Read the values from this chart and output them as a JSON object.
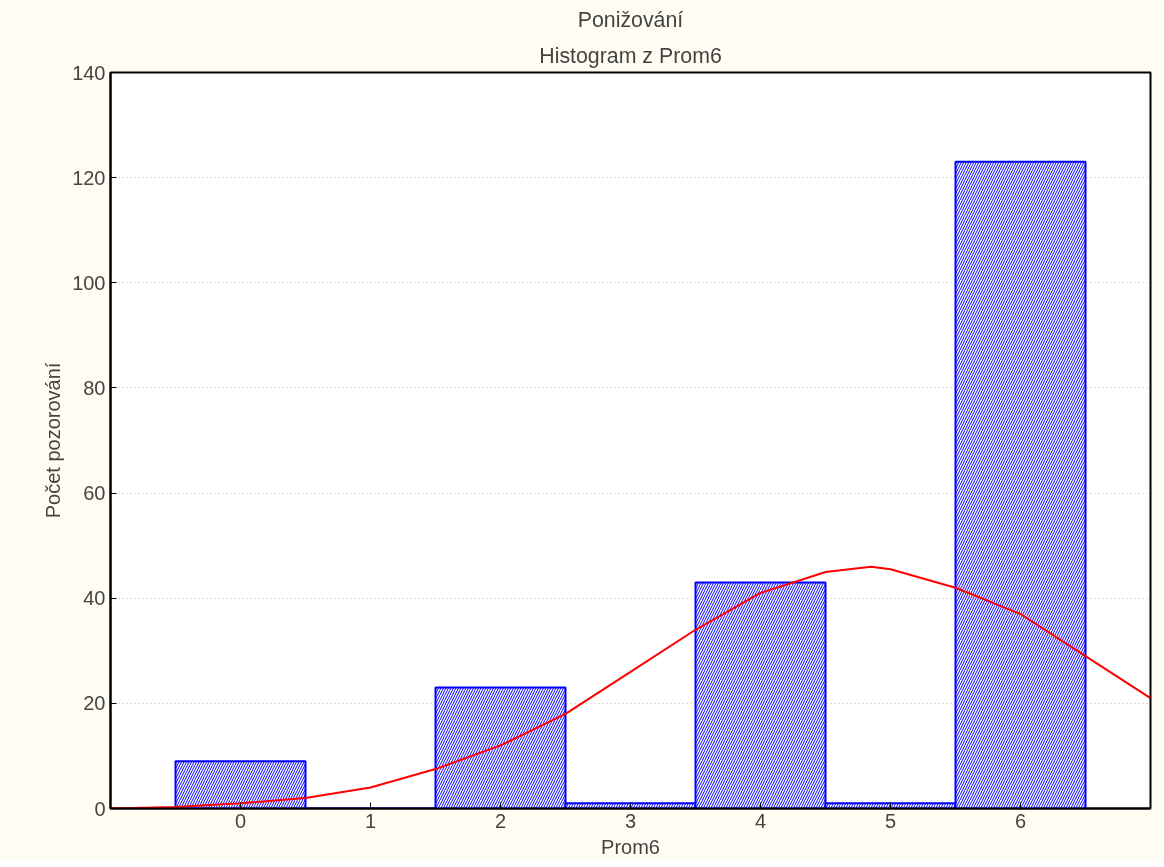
{
  "chart_data": {
    "type": "histogram",
    "title": "Ponižování",
    "subtitle": "Histogram z Prom6",
    "xlabel": "Prom6",
    "ylabel": "Počet pozorování",
    "bins": [
      -0.5,
      0.5,
      1.5,
      2.5,
      3.5,
      4.5,
      5.5,
      6.5
    ],
    "series": [
      {
        "color": "#0000ff",
        "values": [
          9,
          0,
          23,
          1,
          43,
          1,
          123
        ]
      },
      {
        "type": "line",
        "color": "#ff0000",
        "x": [
          -1,
          -0.5,
          0,
          0.5,
          1,
          1.5,
          2,
          2.5,
          3,
          3.5,
          4,
          4.5,
          4.85,
          5,
          5.5,
          6,
          6.5,
          7
        ],
        "values": [
          0,
          0.3,
          1,
          2,
          4,
          7.5,
          12,
          18,
          26,
          34,
          41,
          45,
          46,
          45.5,
          42,
          37,
          29,
          21
        ]
      }
    ],
    "xlim": [
      -1,
      7
    ],
    "xticks": [
      0,
      1,
      2,
      3,
      4,
      5,
      6
    ],
    "ylim": [
      0,
      140
    ],
    "yticks": [
      0,
      20,
      40,
      60,
      80,
      100,
      120,
      140
    ],
    "grid": "y",
    "marker": "none",
    "line_style": "solid"
  }
}
